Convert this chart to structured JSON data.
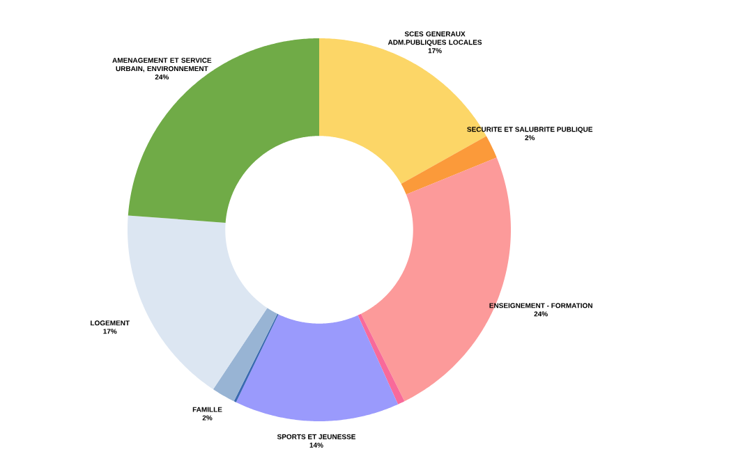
{
  "chart_data": {
    "type": "donut",
    "categories": [
      "SCES GENERAUX ADM.PUBLIQUES LOCALES",
      "SECURITE ET SALUBRITE PUBLIQUE",
      "ENSEIGNEMENT - FORMATION",
      null,
      "SPORTS ET JEUNESSE",
      null,
      "FAMILLE",
      "LOGEMENT",
      "AMENAGEMENT ET SERVICE URBAIN, ENVIRONNEMENT"
    ],
    "values": [
      17,
      2,
      24,
      0.6,
      14,
      0.2,
      2,
      17,
      24
    ],
    "value_labels": [
      "17%",
      "2%",
      "24%",
      null,
      "14%",
      null,
      "2%",
      "17%",
      "24%"
    ],
    "colors": [
      "#fcd667",
      "#fb9a3a",
      "#fc9a9a",
      "#f86a9a",
      "#9a9afc",
      "#3a6ab0",
      "#98b4d4",
      "#dce6f2",
      "#70ab47"
    ]
  }
}
